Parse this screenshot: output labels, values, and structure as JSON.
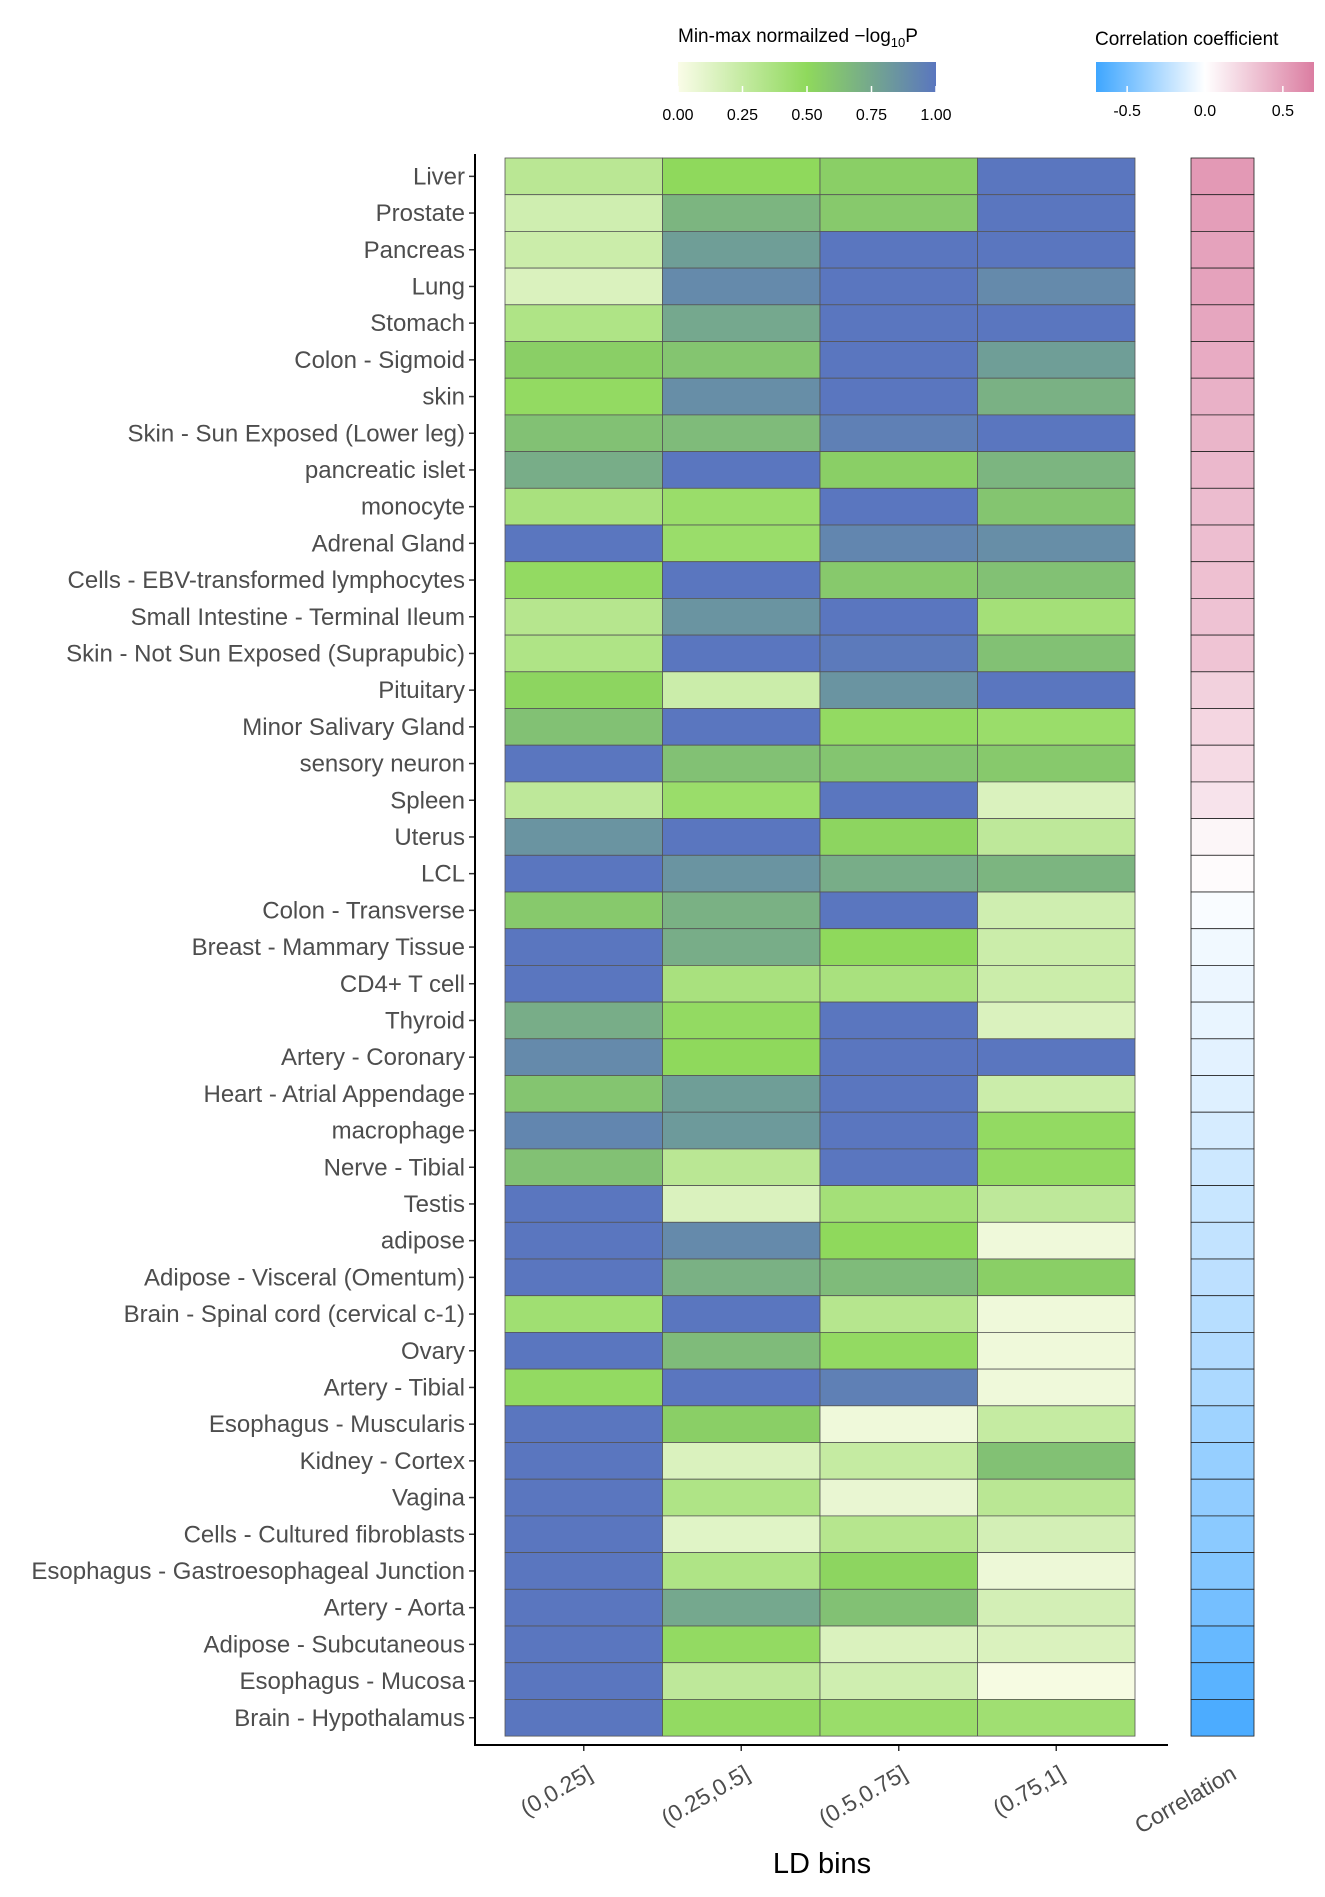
{
  "chart_data": {
    "type": "heatmap",
    "xlabel": "LD bins",
    "ylabel": "",
    "x_categories": [
      "(0,0.25]",
      "(0.25,0.5]",
      "(0.5,0.75]",
      "(0.75,1]"
    ],
    "correlation_column_label": "Correlation",
    "rows": [
      "Liver",
      "Prostate",
      "Pancreas",
      "Lung",
      "Stomach",
      "Colon - Sigmoid",
      "skin",
      "Skin - Sun Exposed (Lower leg)",
      "pancreatic islet",
      "monocyte",
      "Adrenal Gland",
      "Cells - EBV-transformed lymphocytes",
      "Small Intestine - Terminal Ileum",
      "Skin - Not Sun Exposed (Suprapubic)",
      "Pituitary",
      "Minor Salivary Gland",
      "sensory neuron",
      "Spleen",
      "Uterus",
      "LCL",
      "Colon - Transverse",
      "Breast - Mammary Tissue",
      "CD4+ T cell",
      "Thyroid",
      "Artery - Coronary",
      "Heart - Atrial Appendage",
      "macrophage",
      "Nerve - Tibial",
      "Testis",
      "adipose",
      "Adipose - Visceral (Omentum)",
      "Brain - Spinal cord (cervical c-1)",
      "Ovary",
      "Artery - Tibial",
      "Esophagus - Muscularis",
      "Kidney - Cortex",
      "Vagina",
      "Cells - Cultured fibroblasts",
      "Esophagus - Gastroesophageal Junction",
      "Artery - Aorta",
      "Adipose - Subcutaneous",
      "Esophagus - Mucosa",
      "Brain - Hypothalamus"
    ],
    "values": [
      [
        0.3,
        0.5,
        0.55,
        1.0
      ],
      [
        0.2,
        0.68,
        0.58,
        1.0
      ],
      [
        0.22,
        0.8,
        1.0,
        1.0
      ],
      [
        0.15,
        0.9,
        1.0,
        0.9
      ],
      [
        0.35,
        0.75,
        1.0,
        1.0
      ],
      [
        0.55,
        0.6,
        1.0,
        0.8
      ],
      [
        0.48,
        0.88,
        1.0,
        0.7
      ],
      [
        0.62,
        0.65,
        0.95,
        1.0
      ],
      [
        0.72,
        1.0,
        0.55,
        0.68
      ],
      [
        0.38,
        0.45,
        1.0,
        0.6
      ],
      [
        1.0,
        0.45,
        0.92,
        0.88
      ],
      [
        0.48,
        1.0,
        0.58,
        0.62
      ],
      [
        0.32,
        0.85,
        1.0,
        0.4
      ],
      [
        0.35,
        1.0,
        0.98,
        0.62
      ],
      [
        0.52,
        0.22,
        0.85,
        1.0
      ],
      [
        0.62,
        1.0,
        0.48,
        0.45
      ],
      [
        1.0,
        0.62,
        0.6,
        0.58
      ],
      [
        0.28,
        0.45,
        1.0,
        0.15
      ],
      [
        0.85,
        1.0,
        0.52,
        0.28
      ],
      [
        1.0,
        0.85,
        0.72,
        0.68
      ],
      [
        0.58,
        0.7,
        1.0,
        0.2
      ],
      [
        1.0,
        0.72,
        0.5,
        0.22
      ],
      [
        1.0,
        0.38,
        0.38,
        0.22
      ],
      [
        0.72,
        0.48,
        1.0,
        0.15
      ],
      [
        0.9,
        0.5,
        1.0,
        1.0
      ],
      [
        0.6,
        0.8,
        1.0,
        0.22
      ],
      [
        0.92,
        0.82,
        1.0,
        0.48
      ],
      [
        0.62,
        0.3,
        1.0,
        0.48
      ],
      [
        1.0,
        0.15,
        0.4,
        0.28
      ],
      [
        1.0,
        0.9,
        0.5,
        0.05
      ],
      [
        1.0,
        0.7,
        0.65,
        0.55
      ],
      [
        0.42,
        1.0,
        0.32,
        0.05
      ],
      [
        1.0,
        0.65,
        0.48,
        0.05
      ],
      [
        0.48,
        1.0,
        0.95,
        0.05
      ],
      [
        1.0,
        0.55,
        0.05,
        0.25
      ],
      [
        1.0,
        0.15,
        0.25,
        0.62
      ],
      [
        1.0,
        0.35,
        0.08,
        0.3
      ],
      [
        1.0,
        0.12,
        0.32,
        0.18
      ],
      [
        1.0,
        0.35,
        0.52,
        0.06
      ],
      [
        1.0,
        0.75,
        0.62,
        0.18
      ],
      [
        1.0,
        0.48,
        0.15,
        0.15
      ],
      [
        1.0,
        0.28,
        0.2,
        0.02
      ],
      [
        1.0,
        0.48,
        0.45,
        0.42
      ]
    ],
    "correlation": [
      0.55,
      0.52,
      0.5,
      0.5,
      0.48,
      0.45,
      0.42,
      0.4,
      0.38,
      0.36,
      0.35,
      0.34,
      0.33,
      0.32,
      0.25,
      0.22,
      0.2,
      0.15,
      0.05,
      0.02,
      -0.02,
      -0.05,
      -0.07,
      -0.08,
      -0.1,
      -0.12,
      -0.15,
      -0.18,
      -0.2,
      -0.22,
      -0.24,
      -0.26,
      -0.28,
      -0.3,
      -0.35,
      -0.38,
      -0.4,
      -0.42,
      -0.45,
      -0.5,
      -0.55,
      -0.6,
      -0.65
    ],
    "legend_pvalue": {
      "title_main": "Min-max normailzed  −log",
      "title_sub": "10",
      "title_end": "P",
      "ticks": [
        "0.00",
        "0.25",
        "0.50",
        "0.75",
        "1.00"
      ],
      "tick_values": [
        0,
        0.25,
        0.5,
        0.75,
        1.0
      ],
      "range": [
        0,
        1
      ],
      "colors": [
        "#fafce8",
        "#8fd95c",
        "#5a76bf"
      ],
      "placement": "top"
    },
    "legend_corr": {
      "title": "Correlation coefficient",
      "ticks": [
        "-0.5",
        "0.0",
        "0.5"
      ],
      "tick_values": [
        -0.5,
        0.0,
        0.5
      ],
      "range": [
        -0.7,
        0.7
      ],
      "colors": [
        "#3ea6ff",
        "#ffffff",
        "#db7da1"
      ],
      "placement": "top-right"
    },
    "grid": false
  }
}
